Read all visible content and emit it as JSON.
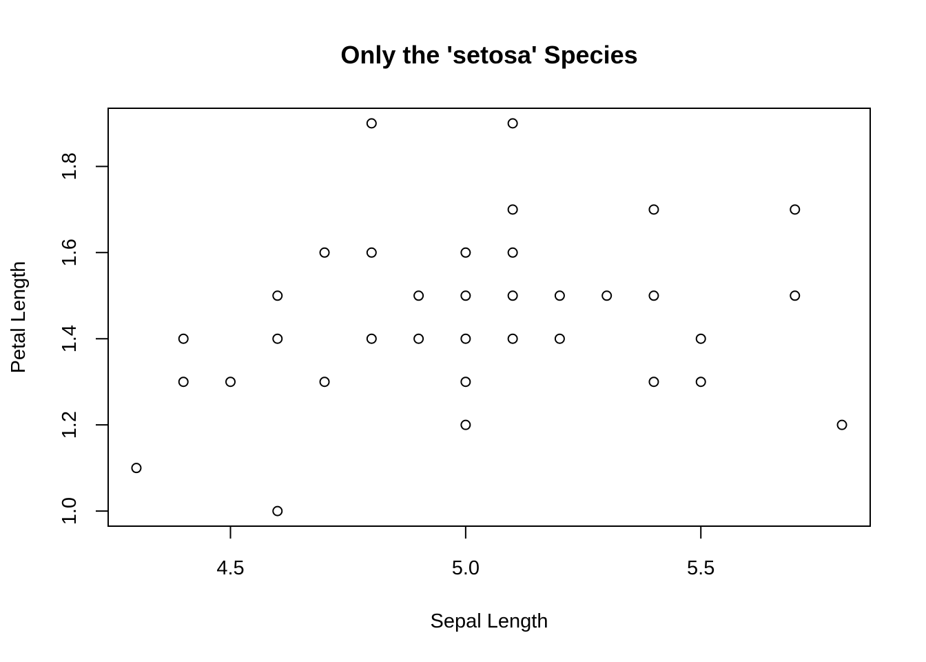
{
  "chart_data": {
    "type": "scatter",
    "title": "Only the 'setosa' Species",
    "xlabel": "Sepal Length",
    "ylabel": "Petal Length",
    "xlim": [
      4.24,
      5.86
    ],
    "ylim": [
      0.965,
      1.935
    ],
    "x_ticks": [
      {
        "value": 4.5,
        "label": "4.5"
      },
      {
        "value": 5.0,
        "label": "5.0"
      },
      {
        "value": 5.5,
        "label": "5.5"
      }
    ],
    "y_ticks": [
      {
        "value": 1.0,
        "label": "1.0"
      },
      {
        "value": 1.2,
        "label": "1.2"
      },
      {
        "value": 1.4,
        "label": "1.4"
      },
      {
        "value": 1.6,
        "label": "1.6"
      },
      {
        "value": 1.8,
        "label": "1.8"
      }
    ],
    "grid": false,
    "marker": "open-circle",
    "colors": {
      "points": "#000000",
      "axes": "#000000",
      "background": "#ffffff"
    },
    "points": [
      {
        "x": 4.3,
        "y": 1.1
      },
      {
        "x": 4.4,
        "y": 1.4
      },
      {
        "x": 4.4,
        "y": 1.3
      },
      {
        "x": 4.5,
        "y": 1.3
      },
      {
        "x": 4.6,
        "y": 1.5
      },
      {
        "x": 4.6,
        "y": 1.4
      },
      {
        "x": 4.6,
        "y": 1.0
      },
      {
        "x": 4.7,
        "y": 1.6
      },
      {
        "x": 4.7,
        "y": 1.3
      },
      {
        "x": 4.8,
        "y": 1.9
      },
      {
        "x": 4.8,
        "y": 1.6
      },
      {
        "x": 4.8,
        "y": 1.4
      },
      {
        "x": 4.9,
        "y": 1.5
      },
      {
        "x": 4.9,
        "y": 1.4
      },
      {
        "x": 5.0,
        "y": 1.6
      },
      {
        "x": 5.0,
        "y": 1.5
      },
      {
        "x": 5.0,
        "y": 1.4
      },
      {
        "x": 5.0,
        "y": 1.3
      },
      {
        "x": 5.0,
        "y": 1.2
      },
      {
        "x": 5.1,
        "y": 1.9
      },
      {
        "x": 5.1,
        "y": 1.7
      },
      {
        "x": 5.1,
        "y": 1.6
      },
      {
        "x": 5.1,
        "y": 1.5
      },
      {
        "x": 5.1,
        "y": 1.4
      },
      {
        "x": 5.2,
        "y": 1.5
      },
      {
        "x": 5.2,
        "y": 1.4
      },
      {
        "x": 5.3,
        "y": 1.5
      },
      {
        "x": 5.4,
        "y": 1.7
      },
      {
        "x": 5.4,
        "y": 1.5
      },
      {
        "x": 5.4,
        "y": 1.3
      },
      {
        "x": 5.5,
        "y": 1.4
      },
      {
        "x": 5.5,
        "y": 1.3
      },
      {
        "x": 5.7,
        "y": 1.7
      },
      {
        "x": 5.7,
        "y": 1.5
      },
      {
        "x": 5.8,
        "y": 1.2
      }
    ]
  }
}
